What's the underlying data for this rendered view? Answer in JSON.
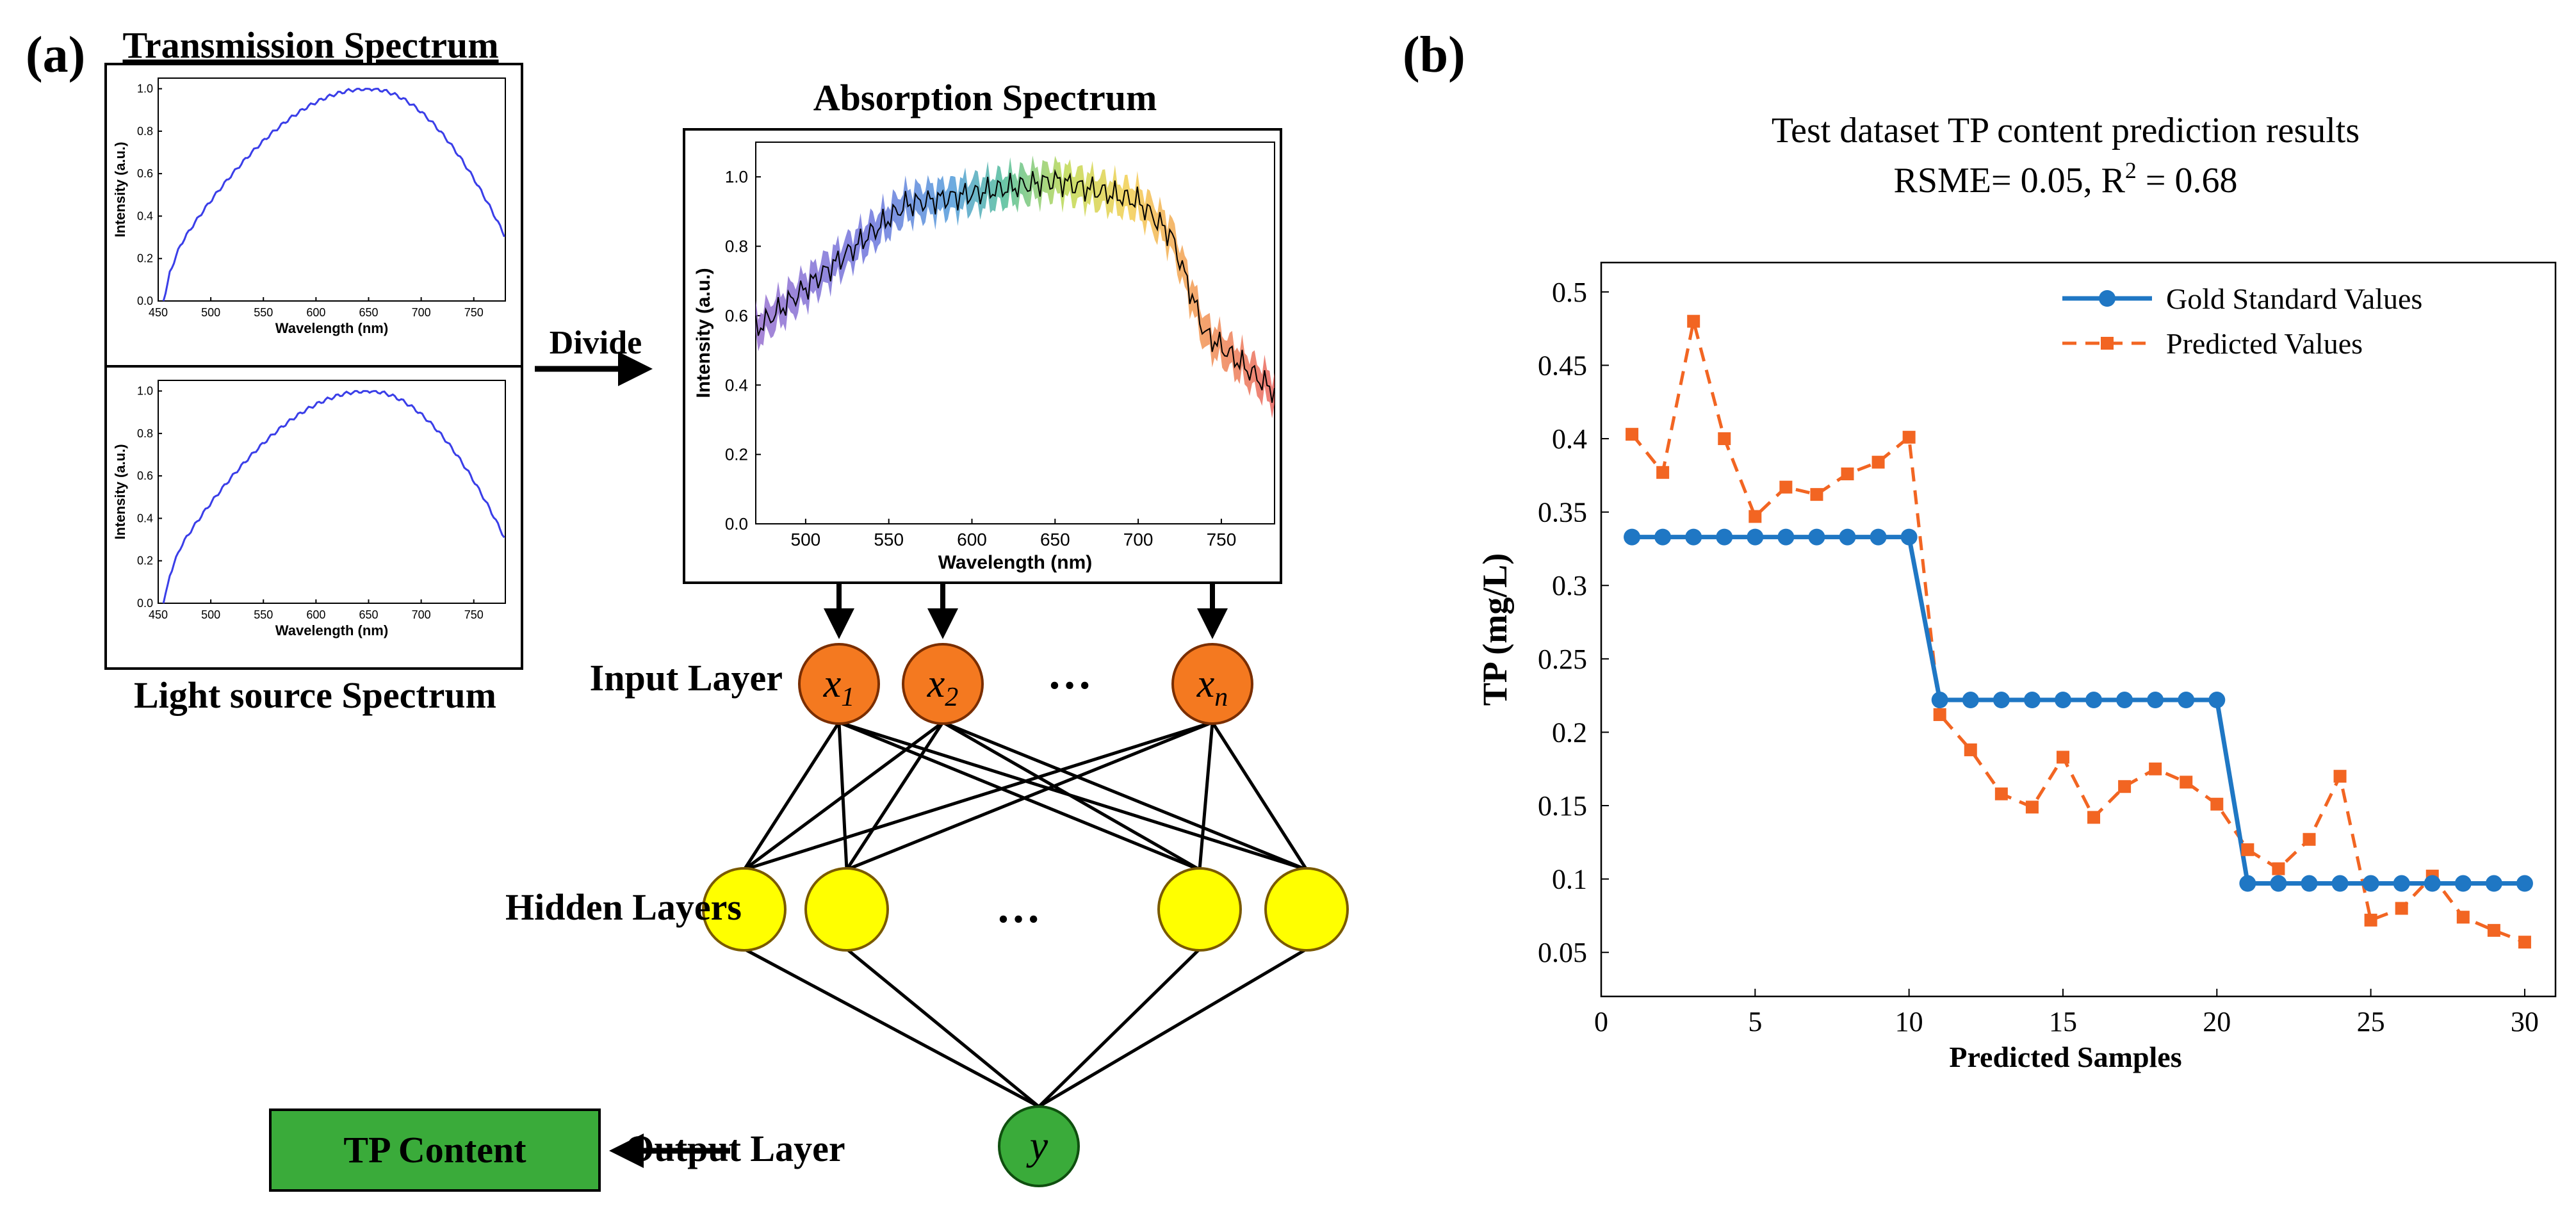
{
  "panel_a": {
    "label": "(a)",
    "transmission_title": "Transmission Spectrum",
    "light_source_title": "Light source Spectrum",
    "absorption_title": "Absorption Spectrum",
    "divide_label": "Divide",
    "small_plot": {
      "ylabel": "Intensity (a.u.)",
      "xlabel": "Wavelength (nm)",
      "x_ticks": [
        "450",
        "500",
        "550",
        "600",
        "650",
        "700",
        "750"
      ],
      "y_ticks": [
        "0.0",
        "0.2",
        "0.4",
        "0.6",
        "0.8",
        "1.0"
      ],
      "line_color": "#3a3ee8"
    },
    "absorption_plot": {
      "ylabel": "Intensity (a.u.)",
      "xlabel": "Wavelength (nm)",
      "x_ticks": [
        "500",
        "550",
        "600",
        "650",
        "700",
        "750"
      ],
      "y_ticks": [
        "0.0",
        "0.2",
        "0.4",
        "0.6",
        "0.8",
        "1.0"
      ]
    },
    "network": {
      "input_layer_label": "Input Layer",
      "hidden_layers_label": "Hidden Layers",
      "output_layer_label": "Output Layer",
      "ellipsis": "…",
      "input_nodes": [
        {
          "base": "x",
          "sub": "1"
        },
        {
          "base": "x",
          "sub": "2"
        },
        {
          "base": "x",
          "sub": "n"
        }
      ],
      "output_node": "y",
      "tp_content_label": "TP Content",
      "colors": {
        "input": "#f47920",
        "hidden": "#ffff00",
        "output": "#3aab3a",
        "tp_box": "#3aab3a"
      }
    }
  },
  "panel_b": {
    "label": "(b)"
  },
  "chart_data": {
    "type": "line",
    "title": "Test dataset TP content prediction results",
    "subtitle_prefix": "RSME= 0.05, R",
    "subtitle_sup": "2",
    "subtitle_suffix": " = 0.68",
    "xlabel": "Predicted Samples",
    "ylabel": "TP (mg/L)",
    "xlim": [
      0,
      31
    ],
    "ylim": [
      0.02,
      0.52
    ],
    "x_ticks": [
      0,
      5,
      10,
      15,
      20,
      25,
      30
    ],
    "y_ticks": [
      0.05,
      0.1,
      0.15,
      0.2,
      0.25,
      0.3,
      0.35,
      0.4,
      0.45,
      0.5
    ],
    "y_tick_labels": [
      "0.05",
      "0.1",
      "0.15",
      "0.2",
      "0.25",
      "0.3",
      "0.35",
      "0.4",
      "0.45",
      "0.5"
    ],
    "legend_position": "top-right",
    "x": [
      1,
      2,
      3,
      4,
      5,
      6,
      7,
      8,
      9,
      10,
      11,
      12,
      13,
      14,
      15,
      16,
      17,
      18,
      19,
      20,
      21,
      22,
      23,
      24,
      25,
      26,
      27,
      28,
      29,
      30
    ],
    "series": [
      {
        "name": "Gold Standard Values",
        "color": "#1f77c4",
        "style": "solid-circle",
        "values": [
          0.333,
          0.333,
          0.333,
          0.333,
          0.333,
          0.333,
          0.333,
          0.333,
          0.333,
          0.333,
          0.222,
          0.222,
          0.222,
          0.222,
          0.222,
          0.222,
          0.222,
          0.222,
          0.222,
          0.222,
          0.097,
          0.097,
          0.097,
          0.097,
          0.097,
          0.097,
          0.097,
          0.097,
          0.097,
          0.097
        ]
      },
      {
        "name": "Predicted Values",
        "color": "#f26522",
        "style": "dashed-square",
        "values": [
          0.403,
          0.377,
          0.48,
          0.4,
          0.347,
          0.367,
          0.362,
          0.376,
          0.384,
          0.401,
          0.212,
          0.188,
          0.158,
          0.149,
          0.183,
          0.142,
          0.163,
          0.175,
          0.166,
          0.151,
          0.12,
          0.107,
          0.127,
          0.17,
          0.072,
          0.08,
          0.102,
          0.074,
          0.065,
          0.057
        ]
      }
    ]
  }
}
